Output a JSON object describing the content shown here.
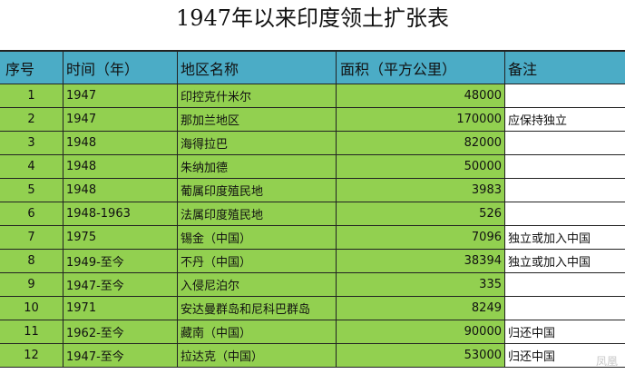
{
  "title": "1947年以来印度领土扩张表",
  "headers": [
    "序号",
    "时间（年）",
    "地区名称",
    "面积（平方公里）",
    "备注"
  ],
  "rows": [
    {
      "no": "1",
      "time": "1947",
      "region": "印控克什米尔",
      "area": "48000",
      "note": ""
    },
    {
      "no": "2",
      "time": "1947",
      "region": "那加兰地区",
      "area": "170000",
      "note": "应保持独立"
    },
    {
      "no": "3",
      "time": "1948",
      "region": "海得拉巴",
      "area": "82000",
      "note": ""
    },
    {
      "no": "4",
      "time": "1948",
      "region": "朱纳加德",
      "area": "50000",
      "note": ""
    },
    {
      "no": "5",
      "time": "1948",
      "region": "葡属印度殖民地",
      "area": "3983",
      "note": ""
    },
    {
      "no": "6",
      "time": "1948-1963",
      "region": "法属印度殖民地",
      "area": "526",
      "note": ""
    },
    {
      "no": "7",
      "time": "1975",
      "region": "锡金（中国）",
      "area": "7096",
      "note": "独立或加入中国"
    },
    {
      "no": "8",
      "time": "1949-至今",
      "region": "不丹（中国）",
      "area": "38394",
      "note": "独立或加入中国"
    },
    {
      "no": "9",
      "time": "1947-至今",
      "region": "入侵尼泊尔",
      "area": "335",
      "note": ""
    },
    {
      "no": "10",
      "time": "1971",
      "region": "安达曼群岛和尼科巴群岛",
      "area": "8249",
      "note": ""
    },
    {
      "no": "11",
      "time": "1962-至今",
      "region": "藏南（中国）",
      "area": "90000",
      "note": "归还中国"
    },
    {
      "no": "12",
      "time": "1947-至今",
      "region": "拉达克（中国）",
      "area": "53000",
      "note": "归还中国"
    }
  ],
  "watermark": "凤凰",
  "colors": {
    "header": "#4bacc6",
    "row": "#92d050",
    "note_bg": "#ffffff"
  }
}
